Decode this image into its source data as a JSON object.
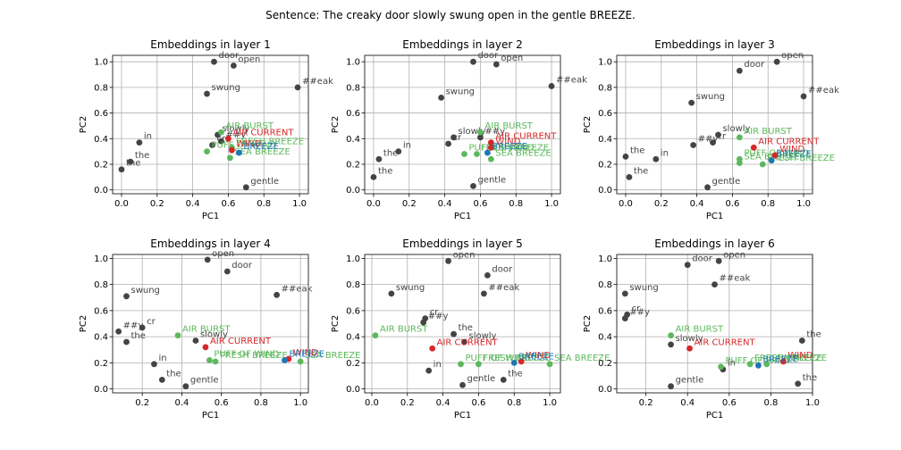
{
  "figure": {
    "suptitle": "Sentence: The creaky door slowly swung open in the gentle BREEZE."
  },
  "colors": {
    "token": "#444444",
    "gold_label": "#5cb85c",
    "distractor_label": "#d62728",
    "target": "#1f77b4",
    "grid": "#b0b0b0",
    "axis": "#000000"
  },
  "chart_data": [
    {
      "type": "scatter",
      "title": "Embeddings in layer 1",
      "xlabel": "PC1",
      "ylabel": "PC2",
      "xlim": [
        -0.05,
        1.05
      ],
      "ylim": [
        -0.03,
        1.05
      ],
      "xticks": [
        0.0,
        0.2,
        0.4,
        0.6,
        0.8,
        1.0
      ],
      "yticks": [
        0.0,
        0.2,
        0.4,
        0.6,
        0.8,
        1.0
      ],
      "grid": true,
      "points": [
        {
          "label": "door",
          "x": 0.52,
          "y": 1.0,
          "kind": "token"
        },
        {
          "label": "open",
          "x": 0.63,
          "y": 0.97,
          "kind": "token"
        },
        {
          "label": "##eak",
          "x": 0.99,
          "y": 0.8,
          "kind": "token"
        },
        {
          "label": "swung",
          "x": 0.48,
          "y": 0.75,
          "kind": "token"
        },
        {
          "label": "in",
          "x": 0.1,
          "y": 0.37,
          "kind": "token"
        },
        {
          "label": "the",
          "x": 0.05,
          "y": 0.22,
          "kind": "token"
        },
        {
          "label": "the",
          "x": 0.0,
          "y": 0.16,
          "kind": "token"
        },
        {
          "label": "slowly",
          "x": 0.54,
          "y": 0.43,
          "kind": "token"
        },
        {
          "label": "cr",
          "x": 0.51,
          "y": 0.35,
          "kind": "token"
        },
        {
          "label": "##y",
          "x": 0.56,
          "y": 0.38,
          "kind": "token"
        },
        {
          "label": "gentle",
          "x": 0.7,
          "y": 0.02,
          "kind": "token"
        },
        {
          "label": "AIR BURST",
          "x": 0.56,
          "y": 0.45,
          "kind": "gold"
        },
        {
          "label": "AIR CURRENT",
          "x": 0.6,
          "y": 0.4,
          "kind": "distractor"
        },
        {
          "label": "WIND",
          "x": 0.62,
          "y": 0.31,
          "kind": "distractor"
        },
        {
          "label": "PUFF OF WIND",
          "x": 0.48,
          "y": 0.3,
          "kind": "gold"
        },
        {
          "label": "FRESH BREEZE",
          "x": 0.62,
          "y": 0.33,
          "kind": "gold"
        },
        {
          "label": "SEA BREEZE",
          "x": 0.61,
          "y": 0.25,
          "kind": "gold"
        },
        {
          "label": "BREEZE",
          "x": 0.66,
          "y": 0.29,
          "kind": "target"
        }
      ]
    },
    {
      "type": "scatter",
      "title": "Embeddings in layer 2",
      "xlabel": "PC1",
      "ylabel": "PC2",
      "xlim": [
        -0.05,
        1.05
      ],
      "ylim": [
        -0.03,
        1.05
      ],
      "xticks": [
        0.0,
        0.2,
        0.4,
        0.6,
        0.8,
        1.0
      ],
      "yticks": [
        0.0,
        0.2,
        0.4,
        0.6,
        0.8,
        1.0
      ],
      "grid": true,
      "points": [
        {
          "label": "door",
          "x": 0.56,
          "y": 1.0,
          "kind": "token"
        },
        {
          "label": "open",
          "x": 0.69,
          "y": 0.98,
          "kind": "token"
        },
        {
          "label": "##eak",
          "x": 1.0,
          "y": 0.81,
          "kind": "token"
        },
        {
          "label": "swung",
          "x": 0.38,
          "y": 0.72,
          "kind": "token"
        },
        {
          "label": "in",
          "x": 0.14,
          "y": 0.3,
          "kind": "token"
        },
        {
          "label": "the",
          "x": 0.03,
          "y": 0.24,
          "kind": "token"
        },
        {
          "label": "the",
          "x": 0.0,
          "y": 0.1,
          "kind": "token"
        },
        {
          "label": "slowly",
          "x": 0.45,
          "y": 0.41,
          "kind": "token"
        },
        {
          "label": "cr",
          "x": 0.42,
          "y": 0.36,
          "kind": "token"
        },
        {
          "label": "##y",
          "x": 0.6,
          "y": 0.41,
          "kind": "token"
        },
        {
          "label": "gentle",
          "x": 0.56,
          "y": 0.03,
          "kind": "token"
        },
        {
          "label": "AIR BURST",
          "x": 0.6,
          "y": 0.45,
          "kind": "gold"
        },
        {
          "label": "AIR CURRENT",
          "x": 0.66,
          "y": 0.37,
          "kind": "distractor"
        },
        {
          "label": "WIND",
          "x": 0.66,
          "y": 0.33,
          "kind": "distractor"
        },
        {
          "label": "PUFF OF WIND",
          "x": 0.51,
          "y": 0.28,
          "kind": "gold"
        },
        {
          "label": "FRESH BREEZE",
          "x": 0.58,
          "y": 0.28,
          "kind": "gold"
        },
        {
          "label": "SEA BREEZE",
          "x": 0.66,
          "y": 0.24,
          "kind": "gold"
        },
        {
          "label": "BREEZE",
          "x": 0.64,
          "y": 0.29,
          "kind": "target"
        }
      ]
    },
    {
      "type": "scatter",
      "title": "Embeddings in layer 3",
      "xlabel": "PC1",
      "ylabel": "PC2",
      "xlim": [
        -0.05,
        1.05
      ],
      "ylim": [
        -0.03,
        1.05
      ],
      "xticks": [
        0.0,
        0.2,
        0.4,
        0.6,
        0.8,
        1.0
      ],
      "yticks": [
        0.0,
        0.2,
        0.4,
        0.6,
        0.8,
        1.0
      ],
      "grid": true,
      "points": [
        {
          "label": "open",
          "x": 0.85,
          "y": 1.0,
          "kind": "token"
        },
        {
          "label": "door",
          "x": 0.64,
          "y": 0.93,
          "kind": "token"
        },
        {
          "label": "##eak",
          "x": 1.0,
          "y": 0.73,
          "kind": "token"
        },
        {
          "label": "swung",
          "x": 0.37,
          "y": 0.68,
          "kind": "token"
        },
        {
          "label": "cr",
          "x": 0.49,
          "y": 0.37,
          "kind": "token"
        },
        {
          "label": "slowly",
          "x": 0.52,
          "y": 0.43,
          "kind": "token"
        },
        {
          "label": "##y",
          "x": 0.38,
          "y": 0.35,
          "kind": "token"
        },
        {
          "label": "the",
          "x": 0.0,
          "y": 0.26,
          "kind": "token"
        },
        {
          "label": "in",
          "x": 0.17,
          "y": 0.24,
          "kind": "token"
        },
        {
          "label": "the",
          "x": 0.02,
          "y": 0.1,
          "kind": "token"
        },
        {
          "label": "gentle",
          "x": 0.46,
          "y": 0.02,
          "kind": "token"
        },
        {
          "label": "AIR BURST",
          "x": 0.64,
          "y": 0.41,
          "kind": "gold"
        },
        {
          "label": "AIR CURRENT",
          "x": 0.72,
          "y": 0.33,
          "kind": "distractor"
        },
        {
          "label": "PUFF OF WIND",
          "x": 0.64,
          "y": 0.24,
          "kind": "gold"
        },
        {
          "label": "WIND",
          "x": 0.84,
          "y": 0.27,
          "kind": "distractor"
        },
        {
          "label": "FRESH BREEZE",
          "x": 0.77,
          "y": 0.2,
          "kind": "gold"
        },
        {
          "label": "SEA BREEZE",
          "x": 0.64,
          "y": 0.21,
          "kind": "gold"
        },
        {
          "label": "BREEZE",
          "x": 0.82,
          "y": 0.23,
          "kind": "target"
        }
      ]
    },
    {
      "type": "scatter",
      "title": "Embeddings in layer 4",
      "xlabel": "PC1",
      "ylabel": "PC2",
      "xlim": [
        0.05,
        1.04
      ],
      "ylim": [
        -0.03,
        1.03
      ],
      "xticks": [
        0.2,
        0.4,
        0.6,
        0.8,
        1.0
      ],
      "yticks": [
        0.0,
        0.2,
        0.4,
        0.6,
        0.8,
        1.0
      ],
      "grid": true,
      "points": [
        {
          "label": "open",
          "x": 0.53,
          "y": 0.99,
          "kind": "token"
        },
        {
          "label": "door",
          "x": 0.63,
          "y": 0.9,
          "kind": "token"
        },
        {
          "label": "##eak",
          "x": 0.88,
          "y": 0.72,
          "kind": "token"
        },
        {
          "label": "swung",
          "x": 0.12,
          "y": 0.71,
          "kind": "token"
        },
        {
          "label": "##y",
          "x": 0.08,
          "y": 0.44,
          "kind": "token"
        },
        {
          "label": "cr",
          "x": 0.2,
          "y": 0.47,
          "kind": "token"
        },
        {
          "label": "the",
          "x": 0.12,
          "y": 0.36,
          "kind": "token"
        },
        {
          "label": "slowly",
          "x": 0.47,
          "y": 0.37,
          "kind": "token"
        },
        {
          "label": "in",
          "x": 0.26,
          "y": 0.19,
          "kind": "token"
        },
        {
          "label": "the",
          "x": 0.3,
          "y": 0.07,
          "kind": "token"
        },
        {
          "label": "gentle",
          "x": 0.42,
          "y": 0.02,
          "kind": "token"
        },
        {
          "label": "AIR BURST",
          "x": 0.38,
          "y": 0.41,
          "kind": "gold"
        },
        {
          "label": "AIR CURRENT",
          "x": 0.52,
          "y": 0.32,
          "kind": "distractor"
        },
        {
          "label": "PUFF OF WIND",
          "x": 0.54,
          "y": 0.22,
          "kind": "gold"
        },
        {
          "label": "FRESH BREEZE",
          "x": 0.57,
          "y": 0.21,
          "kind": "gold"
        },
        {
          "label": "SEA BREEZE",
          "x": 1.0,
          "y": 0.21,
          "kind": "gold"
        },
        {
          "label": "WIND",
          "x": 0.94,
          "y": 0.23,
          "kind": "distractor"
        },
        {
          "label": "BREEZE",
          "x": 0.92,
          "y": 0.22,
          "kind": "target"
        }
      ]
    },
    {
      "type": "scatter",
      "title": "Embeddings in layer 5",
      "xlabel": "PC1",
      "ylabel": "PC2",
      "xlim": [
        -0.04,
        1.06
      ],
      "ylim": [
        -0.03,
        1.03
      ],
      "xticks": [
        0.0,
        0.2,
        0.4,
        0.6,
        0.8,
        1.0
      ],
      "yticks": [
        0.0,
        0.2,
        0.4,
        0.6,
        0.8,
        1.0
      ],
      "grid": true,
      "points": [
        {
          "label": "open",
          "x": 0.43,
          "y": 0.98,
          "kind": "token"
        },
        {
          "label": "door",
          "x": 0.65,
          "y": 0.87,
          "kind": "token"
        },
        {
          "label": "swung",
          "x": 0.11,
          "y": 0.73,
          "kind": "token"
        },
        {
          "label": "##eak",
          "x": 0.63,
          "y": 0.73,
          "kind": "token"
        },
        {
          "label": "cr",
          "x": 0.3,
          "y": 0.54,
          "kind": "token"
        },
        {
          "label": "##y",
          "x": 0.29,
          "y": 0.51,
          "kind": "token"
        },
        {
          "label": "the",
          "x": 0.46,
          "y": 0.42,
          "kind": "token"
        },
        {
          "label": "slowly",
          "x": 0.52,
          "y": 0.36,
          "kind": "token"
        },
        {
          "label": "in",
          "x": 0.32,
          "y": 0.14,
          "kind": "token"
        },
        {
          "label": "gentle",
          "x": 0.51,
          "y": 0.03,
          "kind": "token"
        },
        {
          "label": "the",
          "x": 0.74,
          "y": 0.07,
          "kind": "token"
        },
        {
          "label": "AIR BURST",
          "x": 0.02,
          "y": 0.41,
          "kind": "gold"
        },
        {
          "label": "AIR CURRENT",
          "x": 0.34,
          "y": 0.31,
          "kind": "distractor"
        },
        {
          "label": "PUFF OF WIND",
          "x": 0.5,
          "y": 0.19,
          "kind": "gold"
        },
        {
          "label": "FRESH BREEZE",
          "x": 0.6,
          "y": 0.19,
          "kind": "gold"
        },
        {
          "label": "WIND",
          "x": 0.84,
          "y": 0.21,
          "kind": "distractor"
        },
        {
          "label": "SEA BREEZE",
          "x": 1.0,
          "y": 0.19,
          "kind": "gold"
        },
        {
          "label": "BREEZE",
          "x": 0.8,
          "y": 0.2,
          "kind": "target"
        }
      ]
    },
    {
      "type": "scatter",
      "title": "Embeddings in layer 6",
      "xlabel": "PC1",
      "ylabel": "PC2",
      "xlim": [
        0.06,
        1.0
      ],
      "ylim": [
        -0.03,
        1.03
      ],
      "xticks": [
        0.2,
        0.4,
        0.6,
        0.8,
        1.0
      ],
      "yticks": [
        0.0,
        0.2,
        0.4,
        0.6,
        0.8,
        1.0
      ],
      "grid": true,
      "points": [
        {
          "label": "door",
          "x": 0.4,
          "y": 0.95,
          "kind": "token"
        },
        {
          "label": "open",
          "x": 0.55,
          "y": 0.98,
          "kind": "token"
        },
        {
          "label": "##eak",
          "x": 0.53,
          "y": 0.8,
          "kind": "token"
        },
        {
          "label": "swung",
          "x": 0.1,
          "y": 0.73,
          "kind": "token"
        },
        {
          "label": "cr",
          "x": 0.11,
          "y": 0.57,
          "kind": "token"
        },
        {
          "label": "##y",
          "x": 0.1,
          "y": 0.54,
          "kind": "token"
        },
        {
          "label": "slowly",
          "x": 0.32,
          "y": 0.34,
          "kind": "token"
        },
        {
          "label": "the",
          "x": 0.95,
          "y": 0.37,
          "kind": "token"
        },
        {
          "label": "in",
          "x": 0.57,
          "y": 0.15,
          "kind": "token"
        },
        {
          "label": "the",
          "x": 0.93,
          "y": 0.04,
          "kind": "token"
        },
        {
          "label": "gentle",
          "x": 0.32,
          "y": 0.02,
          "kind": "token"
        },
        {
          "label": "AIR BURST",
          "x": 0.32,
          "y": 0.41,
          "kind": "gold"
        },
        {
          "label": "AIR CURRENT",
          "x": 0.41,
          "y": 0.31,
          "kind": "distractor"
        },
        {
          "label": "PUFF OF WIND",
          "x": 0.56,
          "y": 0.17,
          "kind": "gold"
        },
        {
          "label": "FRESH BREEZE",
          "x": 0.7,
          "y": 0.19,
          "kind": "gold"
        },
        {
          "label": "SEA BREEZE",
          "x": 0.78,
          "y": 0.19,
          "kind": "gold"
        },
        {
          "label": "BREEZE",
          "x": 0.74,
          "y": 0.18,
          "kind": "target"
        },
        {
          "label": "WIND",
          "x": 0.86,
          "y": 0.21,
          "kind": "distractor"
        }
      ]
    }
  ]
}
